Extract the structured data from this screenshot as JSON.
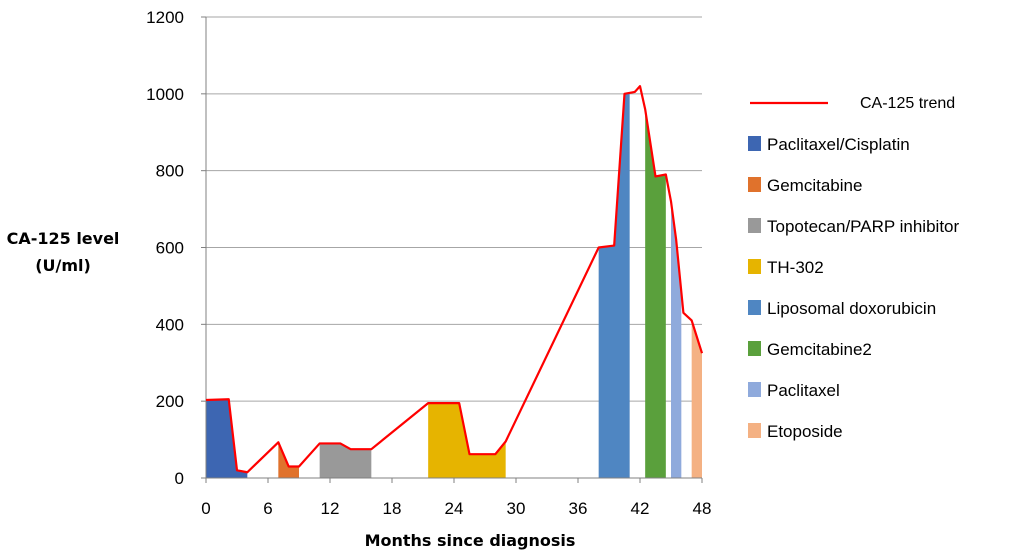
{
  "chart_data": {
    "type": "area",
    "xlabel": "Months since diagnosis",
    "ylabel_lines": [
      "CA-125 level",
      "(U/ml)"
    ],
    "xlim": [
      0,
      48
    ],
    "ylim": [
      0,
      1200
    ],
    "x_ticks": [
      "0",
      "6",
      "12",
      "18",
      "24",
      "30",
      "36",
      "42",
      "48"
    ],
    "y_ticks": [
      "0",
      "200",
      "400",
      "600",
      "800",
      "1000",
      "1200"
    ],
    "grid": "horizontal",
    "legend_position": "right",
    "trend": {
      "name": "CA-125 trend",
      "color": "#ff0000",
      "points": [
        [
          0,
          203
        ],
        [
          2.2,
          205
        ],
        [
          3,
          20
        ],
        [
          4,
          15
        ],
        [
          7,
          93
        ],
        [
          8,
          30
        ],
        [
          9,
          30
        ],
        [
          11,
          90
        ],
        [
          13,
          90
        ],
        [
          14,
          75
        ],
        [
          16,
          75
        ],
        [
          21.5,
          195
        ],
        [
          24.5,
          195
        ],
        [
          25.5,
          62
        ],
        [
          28,
          62
        ],
        [
          29,
          95
        ],
        [
          38,
          600
        ],
        [
          39.5,
          605
        ],
        [
          40.5,
          1000
        ],
        [
          41.5,
          1005
        ],
        [
          42,
          1020
        ],
        [
          42.5,
          960
        ],
        [
          43.5,
          785
        ],
        [
          44.5,
          790
        ],
        [
          45,
          720
        ],
        [
          45.5,
          620
        ],
        [
          46.2,
          430
        ],
        [
          47,
          410
        ],
        [
          48,
          325
        ]
      ]
    },
    "series": [
      {
        "name": "Paclitaxel/Cisplatin",
        "color": "#3d66b2",
        "start": 0,
        "end": 4
      },
      {
        "name": "Gemcitabine",
        "color": "#e0722c",
        "start": 7,
        "end": 9
      },
      {
        "name": "Topotecan/PARP inhibitor",
        "color": "#999999",
        "start": 11,
        "end": 16
      },
      {
        "name": "TH-302",
        "color": "#e6b400",
        "start": 21.5,
        "end": 29
      },
      {
        "name": "Liposomal doxorubicin",
        "color": "#4f86c2",
        "start": 38,
        "end": 41
      },
      {
        "name": "Gemcitabine2",
        "color": "#5aa03c",
        "start": 42.5,
        "end": 44.5
      },
      {
        "name": "Paclitaxel",
        "color": "#8faadc",
        "start": 45,
        "end": 46
      },
      {
        "name": "Etoposide",
        "color": "#f4b183",
        "start": 47,
        "end": 48
      }
    ]
  }
}
